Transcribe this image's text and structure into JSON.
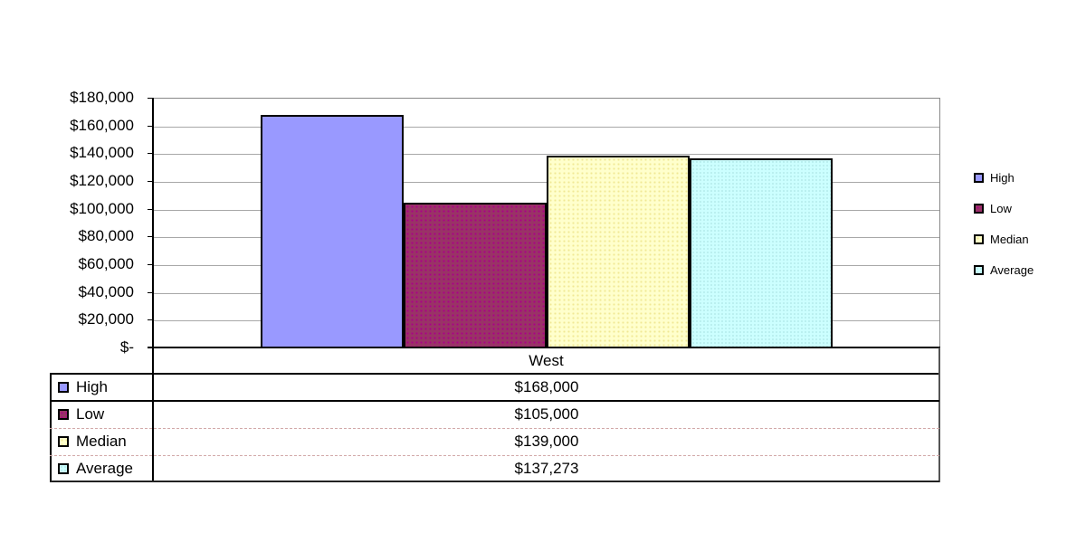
{
  "chart_data": {
    "type": "bar",
    "title": "",
    "xlabel": "",
    "ylabel": "",
    "categories": [
      "West"
    ],
    "series": [
      {
        "name": "High",
        "values": [
          168000
        ],
        "display": "$168,000",
        "color": "#9999FF"
      },
      {
        "name": "Low",
        "values": [
          105000
        ],
        "display": "$105,000",
        "color": "#993366"
      },
      {
        "name": "Median",
        "values": [
          139000
        ],
        "display": "$139,000",
        "color": "#FFFFCC"
      },
      {
        "name": "Average",
        "values": [
          137273
        ],
        "display": "$137,273",
        "color": "#CCFFFF"
      }
    ],
    "ylim": [
      0,
      180000
    ],
    "y_tick_interval": 20000,
    "y_tick_labels": [
      "$180,000",
      "$160,000",
      "$140,000",
      "$120,000",
      "$100,000",
      "$80,000",
      "$60,000",
      "$40,000",
      "$20,000",
      "$-"
    ],
    "grid": true,
    "legend_position": "right",
    "data_table_shown": true
  },
  "legend": {
    "items": [
      "High",
      "Low",
      "Median",
      "Average"
    ]
  },
  "table": {
    "header": "West",
    "rows": [
      {
        "label": "High",
        "value": "$168,000"
      },
      {
        "label": "Low",
        "value": "$105,000"
      },
      {
        "label": "Median",
        "value": "$139,000"
      },
      {
        "label": "Average",
        "value": "$137,273"
      }
    ]
  },
  "colors": {
    "high": "#9999FF",
    "low": "#993366",
    "median": "#FFFFCC",
    "average": "#CCFFFF",
    "gridline": "#a8a8a8",
    "axis": "#000000",
    "plot_border": "#888888"
  }
}
